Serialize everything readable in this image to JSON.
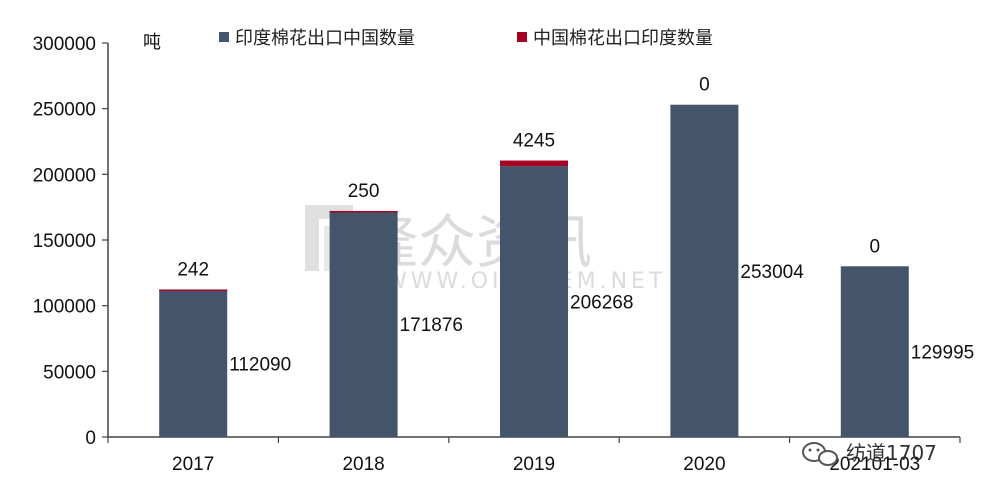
{
  "chart_data": {
    "type": "bar",
    "stacked": true,
    "unit_label": "吨",
    "categories": [
      "2017",
      "2018",
      "2019",
      "2020",
      "202101-03"
    ],
    "series": [
      {
        "name": "印度棉花出口中国数量",
        "color": "#44546a",
        "values": [
          112090,
          171876,
          206268,
          253004,
          129995
        ]
      },
      {
        "name": "中国棉花出口印度数量",
        "color": "#a50021",
        "values": [
          242,
          250,
          4245,
          0,
          0
        ]
      }
    ],
    "yticks": [
      0,
      50000,
      100000,
      150000,
      200000,
      250000,
      300000
    ],
    "ylim": [
      0,
      300000
    ],
    "grid": false,
    "legend_position": "top"
  },
  "watermark": {
    "text_cn": "隆众资讯",
    "text_en": "WWW.OILCHEM.NET",
    "logo_icon": "oilchem-logo-icon"
  },
  "corner_badge": {
    "icon": "wechat-icon",
    "text": "纺道1707"
  }
}
